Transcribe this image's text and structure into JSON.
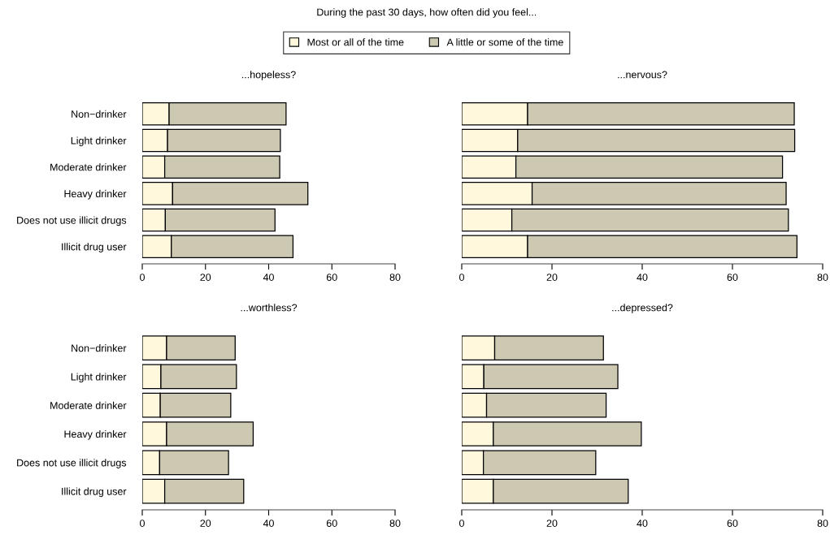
{
  "chart_data": [
    {
      "type": "bar",
      "orientation": "horizontal",
      "stacked": true,
      "title": "...hopeless?",
      "annotations": [
        "During the past 30 days, how often did you feel..."
      ],
      "legend": "top",
      "categories": [
        "Non−drinker",
        "Light drinker",
        "Moderate drinker",
        "Heavy drinker",
        "Does not use illicit drugs",
        "Illicit drug user"
      ],
      "series": [
        {
          "name": "Most or all of the time",
          "color": "#fff8dc",
          "values": [
            8.5,
            8.0,
            7.1,
            9.6,
            7.3,
            9.2
          ]
        },
        {
          "name": "A little or some of the time",
          "color": "#cdc8b1",
          "values": [
            37.0,
            35.7,
            36.4,
            42.8,
            34.7,
            38.5
          ]
        }
      ],
      "xlim": [
        0,
        80
      ],
      "xticks": [
        0,
        20,
        40,
        60,
        80
      ]
    },
    {
      "type": "bar",
      "orientation": "horizontal",
      "stacked": true,
      "title": "...nervous?",
      "tick_labels": "x",
      "categories": [
        "Non−drinker",
        "Light drinker",
        "Moderate drinker",
        "Heavy drinker",
        "Does not use illicit drugs",
        "Illicit drug user"
      ],
      "series": [
        {
          "name": "Most or all of the time",
          "color": "#fff8dc",
          "values": [
            14.6,
            12.4,
            12.0,
            15.6,
            11.1,
            14.6
          ]
        },
        {
          "name": "A little or some of the time",
          "color": "#cdc8b1",
          "values": [
            59.1,
            61.4,
            59.1,
            56.3,
            61.3,
            59.7
          ]
        }
      ],
      "xlim": [
        0,
        80
      ],
      "xticks": [
        0,
        20,
        40,
        60,
        80
      ]
    },
    {
      "type": "bar",
      "orientation": "horizontal",
      "stacked": true,
      "title": "...worthless?",
      "categories": [
        "Non−drinker",
        "Light drinker",
        "Moderate drinker",
        "Heavy drinker",
        "Does not use illicit drugs",
        "Illicit drug user"
      ],
      "series": [
        {
          "name": "Most or all of the time",
          "color": "#fff8dc",
          "values": [
            7.7,
            5.9,
            5.7,
            7.7,
            5.5,
            7.1
          ]
        },
        {
          "name": "A little or some of the time",
          "color": "#cdc8b1",
          "values": [
            21.7,
            23.9,
            22.3,
            27.4,
            21.8,
            25.0
          ]
        }
      ],
      "xlim": [
        0,
        80
      ],
      "xticks": [
        0,
        20,
        40,
        60,
        80
      ]
    },
    {
      "type": "bar",
      "orientation": "horizontal",
      "stacked": true,
      "title": "...depressed?",
      "tick_labels": "x",
      "categories": [
        "Non−drinker",
        "Light drinker",
        "Moderate drinker",
        "Heavy drinker",
        "Does not use illicit drugs",
        "Illicit drug user"
      ],
      "series": [
        {
          "name": "Most or all of the time",
          "color": "#fff8dc",
          "values": [
            7.3,
            4.9,
            5.5,
            7.0,
            4.8,
            7.0
          ]
        },
        {
          "name": "A little or some of the time",
          "color": "#cdc8b1",
          "values": [
            24.1,
            29.7,
            26.5,
            32.8,
            24.9,
            29.9
          ]
        }
      ],
      "xlim": [
        0,
        80
      ],
      "xticks": [
        0,
        20,
        40,
        60,
        80
      ]
    }
  ]
}
